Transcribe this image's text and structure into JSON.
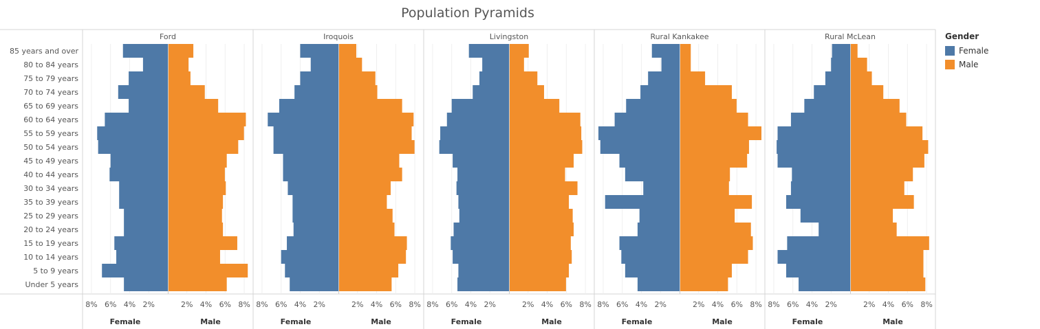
{
  "title": "Population Pyramids",
  "legend": {
    "title": "Gender",
    "items": [
      {
        "label": "Female",
        "color": "#4e79a7"
      },
      {
        "label": "Male",
        "color": "#f28e2b"
      }
    ]
  },
  "chart_data": {
    "type": "bar",
    "orientation": "horizontal",
    "title": "Population Pyramids",
    "categories": [
      "85 years and over",
      "80 to 84 years",
      "75 to 79 years",
      "70 to 74 years",
      "65 to 69 years",
      "60 to 64 years",
      "55 to 59 years",
      "50 to 54 years",
      "45 to 49 years",
      "40 to 44 years",
      "30 to 34 years",
      "35 to 39 years",
      "25 to 29 years",
      "20 to 24 years",
      "15 to 19 years",
      "10 to 14 years",
      "5 to 9 years",
      "Under 5 years"
    ],
    "xlim": [
      0,
      8.5
    ],
    "x_ticks": [
      2,
      4,
      6,
      8
    ],
    "tick_labels": [
      "2%",
      "4%",
      "6%",
      "8%"
    ],
    "axis_labels": {
      "left": "Female",
      "right": "Male"
    },
    "grid": true,
    "legend_position": "top-right",
    "panels": [
      {
        "name": "Ford",
        "female": [
          4.7,
          2.6,
          4.1,
          5.2,
          4.1,
          6.6,
          7.4,
          7.3,
          6.0,
          6.1,
          5.1,
          5.1,
          4.6,
          4.6,
          5.6,
          5.4,
          6.9,
          4.6
        ],
        "male": [
          2.6,
          2.1,
          2.3,
          3.8,
          5.2,
          8.1,
          7.9,
          7.3,
          6.1,
          5.9,
          6.0,
          5.7,
          5.6,
          5.7,
          7.2,
          5.4,
          8.3,
          6.1
        ]
      },
      {
        "name": "Iroquois",
        "female": [
          4.0,
          2.9,
          4.0,
          4.6,
          6.2,
          7.4,
          6.8,
          6.8,
          5.8,
          5.8,
          5.3,
          4.8,
          4.8,
          4.7,
          5.4,
          6.0,
          5.6,
          5.1
        ],
        "male": [
          1.8,
          2.4,
          3.8,
          4.0,
          6.6,
          7.8,
          7.6,
          7.9,
          6.3,
          6.6,
          5.4,
          5.0,
          5.6,
          5.8,
          7.1,
          7.0,
          6.2,
          5.5
        ]
      },
      {
        "name": "Livingston",
        "female": [
          4.2,
          2.8,
          3.1,
          3.8,
          6.0,
          6.5,
          7.2,
          7.3,
          5.9,
          5.4,
          5.5,
          5.3,
          5.2,
          5.8,
          6.1,
          5.9,
          5.3,
          5.4
        ],
        "male": [
          2.0,
          1.5,
          2.9,
          3.6,
          5.2,
          7.4,
          7.5,
          7.6,
          6.7,
          5.8,
          7.1,
          6.2,
          6.6,
          6.7,
          6.4,
          6.5,
          6.2,
          5.9
        ]
      },
      {
        "name": "Rural Kankakee",
        "female": [
          2.9,
          1.9,
          3.3,
          4.1,
          5.6,
          6.8,
          8.5,
          8.3,
          6.3,
          5.7,
          3.8,
          7.8,
          4.2,
          4.4,
          6.3,
          6.1,
          5.7,
          4.4
        ],
        "male": [
          1.1,
          1.1,
          2.6,
          5.4,
          5.9,
          7.1,
          8.5,
          7.2,
          7.0,
          5.2,
          5.1,
          7.5,
          5.7,
          7.4,
          7.6,
          7.1,
          5.4,
          5.0
        ]
      },
      {
        "name": "Rural McLean",
        "female": [
          1.9,
          2.0,
          2.6,
          3.8,
          4.8,
          6.2,
          7.6,
          7.7,
          7.6,
          6.1,
          6.2,
          6.7,
          5.2,
          3.3,
          6.6,
          7.6,
          6.7,
          5.4
        ],
        "male": [
          0.7,
          1.7,
          2.2,
          3.4,
          5.1,
          5.8,
          7.5,
          8.1,
          7.7,
          6.5,
          5.6,
          6.6,
          4.4,
          4.8,
          8.2,
          7.6,
          7.6,
          7.8
        ]
      }
    ]
  }
}
